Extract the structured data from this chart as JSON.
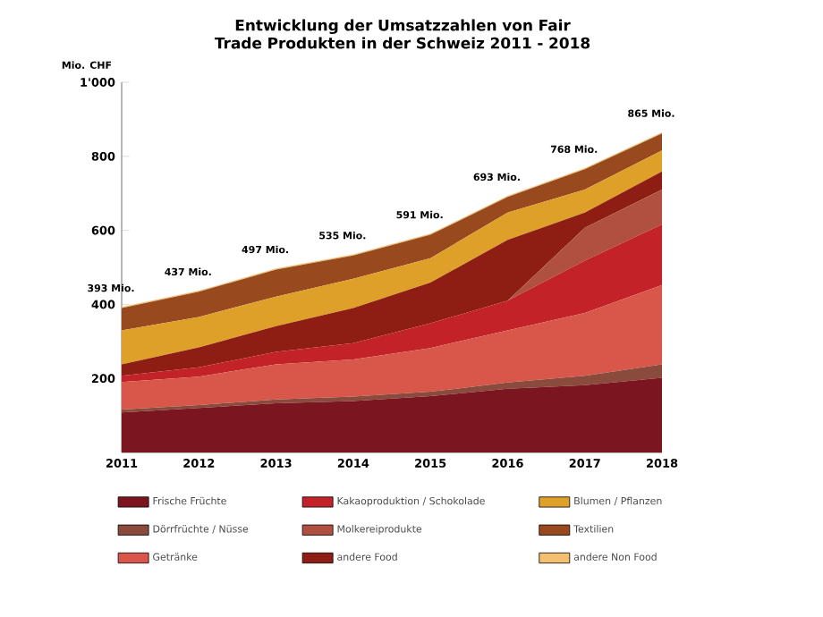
{
  "chart_data": {
    "type": "area",
    "stacked": true,
    "title": "Entwicklung der Umsatzzahlen von Fair Trade Produkten in der Schweiz 2011 - 2018",
    "ylabel": "Mio. CHF",
    "categories": [
      "2011",
      "2012",
      "2013",
      "2014",
      "2015",
      "2016",
      "2017",
      "2018"
    ],
    "series": [
      {
        "name": "Frische Früchte",
        "color": "#7b1520",
        "values": [
          108,
          120,
          133,
          139,
          152,
          172,
          182,
          202
        ]
      },
      {
        "name": "Dörrfrüchte / Nüsse",
        "color": "#8a4a3c",
        "values": [
          8,
          8,
          10,
          12,
          12,
          17,
          25,
          36
        ]
      },
      {
        "name": "Getränke",
        "color": "#d9574a",
        "values": [
          74,
          77,
          95,
          100,
          118,
          141,
          170,
          214
        ]
      },
      {
        "name": "Kakaoproduktion / Schokolade",
        "color": "#c22228",
        "values": [
          17,
          25,
          34,
          44,
          67,
          80,
          141,
          164
        ]
      },
      {
        "name": "Molkereiprodukte",
        "color": "#b05040",
        "values": [
          0,
          0,
          0,
          0,
          0,
          0,
          89,
          94
        ]
      },
      {
        "name": "andere Food",
        "color": "#8e1e14",
        "values": [
          31,
          54,
          69,
          95,
          110,
          164,
          41,
          49
        ]
      },
      {
        "name": "Blumen / Pflanzen",
        "color": "#dfa02a",
        "values": [
          92,
          82,
          80,
          79,
          66,
          74,
          62,
          57
        ]
      },
      {
        "name": "Textilien",
        "color": "#984a1e",
        "values": [
          60,
          68,
          73,
          63,
          63,
          42,
          55,
          46
        ]
      },
      {
        "name": "andere Non Food",
        "color": "#f2c070",
        "values": [
          3,
          3,
          3,
          3,
          3,
          3,
          3,
          3
        ]
      }
    ],
    "totals": [
      "393 Mio.",
      "437 Mio.",
      "497 Mio.",
      "535 Mio.",
      "591 Mio.",
      "693 Mio.",
      "768 Mio.",
      "865 Mio."
    ],
    "ylim": [
      0,
      1000
    ],
    "yticks": [
      200,
      400,
      600,
      800,
      {
        "value": 1000,
        "label": "1'000"
      }
    ],
    "legend": "bottom"
  }
}
